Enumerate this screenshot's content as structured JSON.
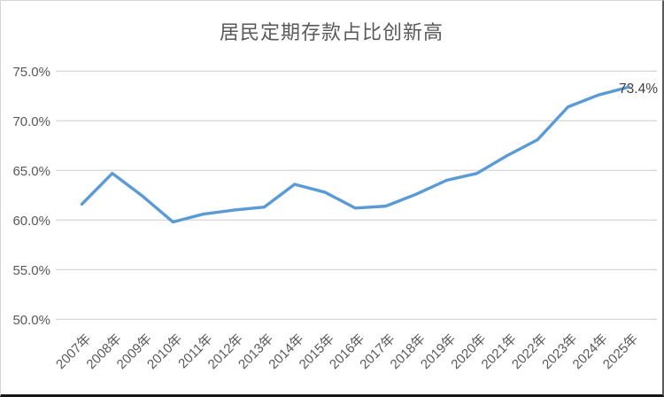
{
  "chart": {
    "title": "居民定期存款占比创新高",
    "end_label": "73.4%"
  },
  "colors": {
    "line": "#5B9BD5",
    "grid": "#d9d9d9",
    "tick_text": "#595959",
    "title_text": "#595959",
    "data_label_text": "#404040",
    "background": "#ffffff"
  },
  "chart_data": {
    "type": "line",
    "title": "居民定期存款占比创新高",
    "categories": [
      "2007年",
      "2008年",
      "2009年",
      "2010年",
      "2011年",
      "2012年",
      "2013年",
      "2014年",
      "2015年",
      "2016年",
      "2017年",
      "2018年",
      "2019年",
      "2020年",
      "2021年",
      "2022年",
      "2023年",
      "2024年",
      "2025年"
    ],
    "series": [
      {
        "name": "居民定期存款占比",
        "values": [
          61.6,
          64.7,
          62.4,
          59.8,
          60.6,
          61.0,
          61.3,
          63.6,
          62.8,
          61.2,
          61.4,
          62.6,
          64.0,
          64.7,
          66.5,
          68.1,
          71.4,
          72.6,
          73.4
        ]
      }
    ],
    "y_ticks": [
      "75.0%",
      "70.0%",
      "65.0%",
      "60.0%",
      "55.0%",
      "50.0%"
    ],
    "y_tick_values": [
      75,
      70,
      65,
      60,
      55,
      50
    ],
    "ylim": [
      50,
      75
    ],
    "xlabel": "",
    "ylabel": "",
    "grid": true,
    "legend": "none",
    "last_point_label": "73.4%"
  }
}
